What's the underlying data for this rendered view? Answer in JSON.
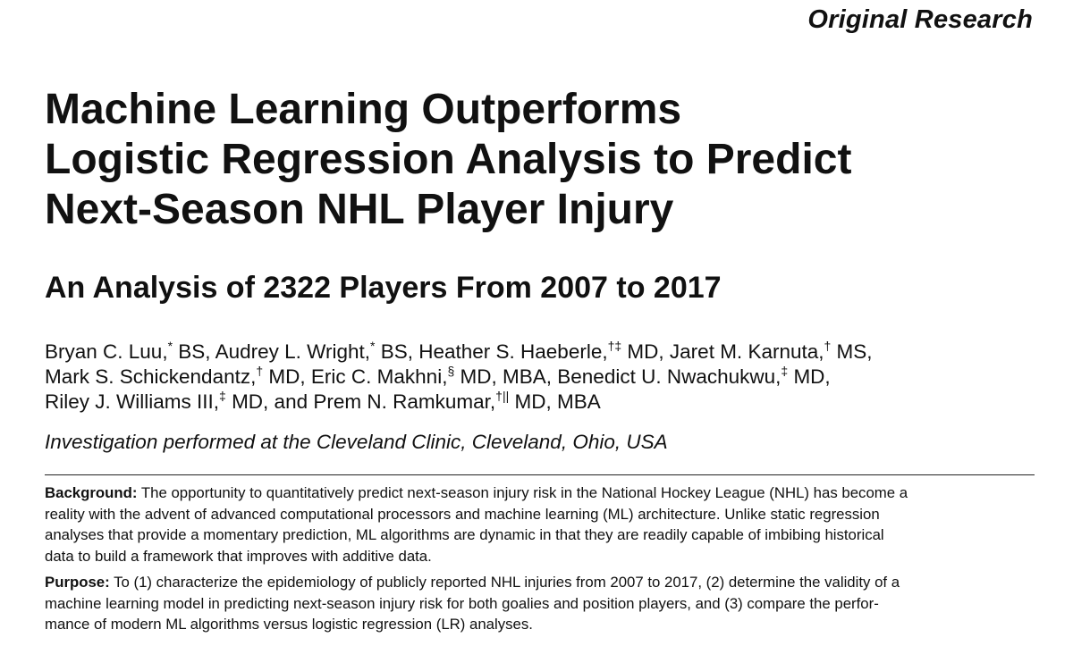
{
  "header": {
    "section": "Original Research"
  },
  "article": {
    "title_lines": [
      "Machine Learning Outperforms",
      "Logistic Regression Analysis to Predict",
      "Next-Season NHL Player Injury"
    ],
    "subtitle": "An Analysis of 2322 Players From 2007 to 2017",
    "authors": {
      "line1": {
        "a1": "Bryan C. Luu,",
        "a1_sup": "*",
        "a1_deg": " BS, ",
        "a2": "Audrey L. Wright,",
        "a2_sup": "*",
        "a2_deg": " BS, ",
        "a3": "Heather S. Haeberle,",
        "a3_sup": "†‡",
        "a3_deg": " MD, ",
        "a4": "Jaret M. Karnuta,",
        "a4_sup": "†",
        "a4_deg": " MS,"
      },
      "line2": {
        "a5": "Mark S. Schickendantz,",
        "a5_sup": "†",
        "a5_deg": " MD, ",
        "a6": "Eric C. Makhni,",
        "a6_sup": "§",
        "a6_deg": " MD, MBA, ",
        "a7": "Benedict U. Nwachukwu,",
        "a7_sup": "‡",
        "a7_deg": " MD,"
      },
      "line3": {
        "a8": "Riley J. Williams III,",
        "a8_sup": "‡",
        "a8_deg": " MD, and ",
        "a9": "Prem N. Ramkumar,",
        "a9_sup": "†||",
        "a9_deg": " MD, MBA"
      }
    },
    "institution": "Investigation performed at the Cleveland Clinic, Cleveland, Ohio, USA"
  },
  "abstract": {
    "background": {
      "heading": "Background:",
      "lines": [
        " The opportunity to quantitatively predict next-season injury risk in the National Hockey League (NHL) has become a",
        "reality with the advent of advanced computational processors and machine learning (ML) architecture. Unlike static regression",
        "analyses that provide a momentary prediction, ML algorithms are dynamic in that they are readily capable of imbibing historical",
        "data to build a framework that improves with additive data."
      ]
    },
    "purpose": {
      "heading": "Purpose:",
      "lines": [
        " To (1) characterize the epidemiology of publicly reported NHL injuries from 2007 to 2017, (2) determine the validity of a",
        "machine learning model in predicting next-season injury risk for both goalies and position players, and (3) compare the perfor-",
        "mance of modern ML algorithms versus logistic regression (LR) analyses."
      ]
    }
  }
}
